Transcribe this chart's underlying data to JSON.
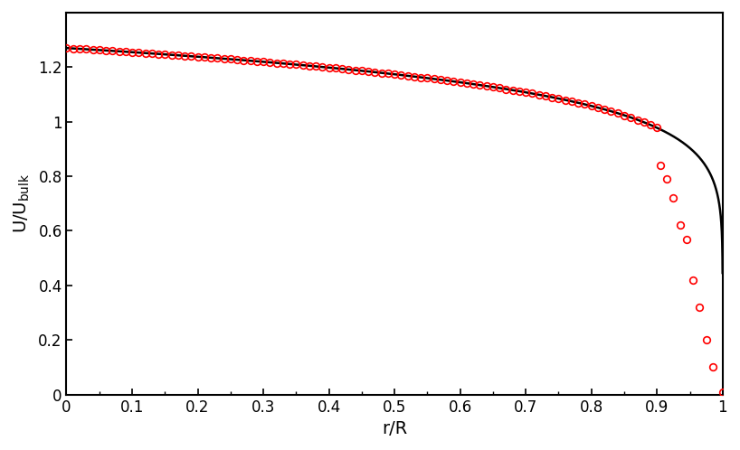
{
  "xlabel": "r/R",
  "ylabel_top": "U/U",
  "ylabel_sub": "bulk",
  "xlim": [
    0,
    1
  ],
  "ylim": [
    0,
    1.4
  ],
  "yticks": [
    0,
    0.2,
    0.4,
    0.6,
    0.8,
    1.0,
    1.2
  ],
  "xticks": [
    0,
    0.1,
    0.2,
    0.3,
    0.4,
    0.5,
    0.6,
    0.7,
    0.8,
    0.9,
    1.0
  ],
  "bg_color": "#ffffff",
  "line_color": "#000000",
  "circle_color": "#ff0000",
  "circle_size": 5.5,
  "line_width": 1.8,
  "U_centerline": 1.27,
  "n_power": 8.8,
  "near_wall_r": [
    0.905,
    0.915,
    0.925,
    0.935,
    0.945,
    0.955,
    0.965,
    0.975,
    0.985,
    1.0
  ],
  "near_wall_U": [
    0.84,
    0.79,
    0.72,
    0.62,
    0.57,
    0.42,
    0.32,
    0.2,
    0.1,
    0.01
  ]
}
